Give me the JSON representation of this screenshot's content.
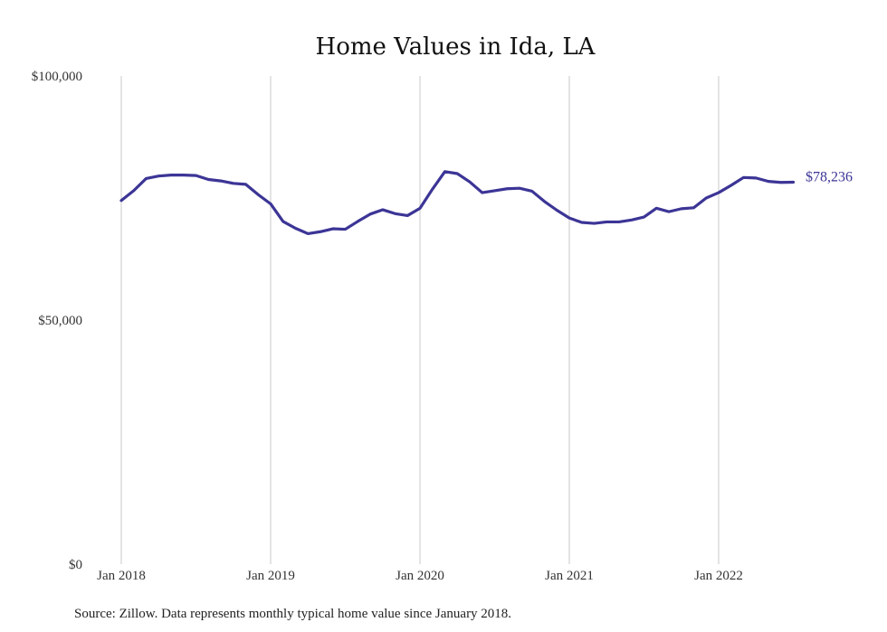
{
  "chart_data": {
    "type": "line",
    "title": "Home Values in Ida, LA",
    "xlabel": "",
    "ylabel": "",
    "ylim": [
      0,
      100000
    ],
    "y_ticks": [
      "$100,000",
      "$50,000",
      "$0"
    ],
    "x_ticks": [
      "Jan 2018",
      "Jan 2019",
      "Jan 2020",
      "Jan 2021",
      "Jan 2022"
    ],
    "grid": "vertical lines at each January",
    "line_color": "#3c3596",
    "end_label": "$78,236",
    "x": [
      "2018-01",
      "2018-02",
      "2018-03",
      "2018-04",
      "2018-05",
      "2018-06",
      "2018-07",
      "2018-08",
      "2018-09",
      "2018-10",
      "2018-11",
      "2018-12",
      "2019-01",
      "2019-02",
      "2019-03",
      "2019-04",
      "2019-05",
      "2019-06",
      "2019-07",
      "2019-08",
      "2019-09",
      "2019-10",
      "2019-11",
      "2019-12",
      "2020-01",
      "2020-02",
      "2020-03",
      "2020-04",
      "2020-05",
      "2020-06",
      "2020-07",
      "2020-08",
      "2020-09",
      "2020-10",
      "2020-11",
      "2020-12",
      "2021-01",
      "2021-02",
      "2021-03",
      "2021-04",
      "2021-05",
      "2021-06",
      "2021-07",
      "2021-08",
      "2021-09",
      "2021-10",
      "2021-11",
      "2021-12",
      "2022-01",
      "2022-02",
      "2022-03",
      "2022-04",
      "2022-05",
      "2022-06",
      "2022-07"
    ],
    "series": [
      {
        "values": [
          74500,
          76500,
          79000,
          79500,
          79700,
          79700,
          79600,
          78800,
          78500,
          78000,
          77800,
          75700,
          73800,
          70200,
          68800,
          67700,
          68100,
          68700,
          68600,
          70200,
          71700,
          72600,
          71800,
          71400,
          72900,
          76800,
          80400,
          80000,
          78300,
          76100,
          76500,
          76900,
          77000,
          76400,
          74300,
          72500,
          70900,
          70000,
          69800,
          70100,
          70100,
          70500,
          71100,
          72900,
          72200,
          72800,
          73000,
          75000,
          76100,
          77600,
          79200,
          79100,
          78400,
          78200,
          78236
        ]
      }
    ]
  },
  "footer": {
    "source": "Source: Zillow. Data represents monthly typical home value since January 2018."
  }
}
